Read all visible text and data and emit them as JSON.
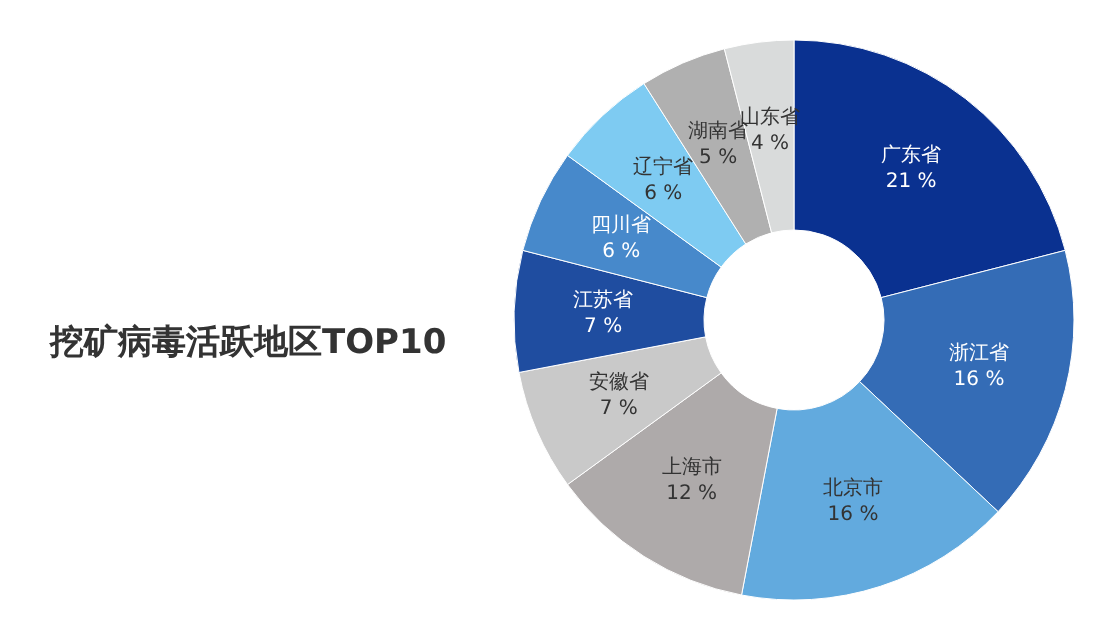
{
  "chart_data": {
    "type": "donut",
    "title": "挖矿病毒活跃地区TOP10",
    "categories": [
      "广东省",
      "浙江省",
      "北京市",
      "上海市",
      "安徽省",
      "江苏省",
      "四川省",
      "辽宁省",
      "湖南省",
      "山东省"
    ],
    "values": [
      21,
      16,
      16,
      12,
      7,
      7,
      6,
      6,
      5,
      4
    ],
    "value_labels": [
      "21 %",
      "16 %",
      "16 %",
      "12 %",
      "7 %",
      "7 %",
      "6 %",
      "6 %",
      "5 %",
      "4 %"
    ],
    "colors": [
      "#0a3190",
      "#346cb6",
      "#62aade",
      "#aeaaaa",
      "#c9c9c9",
      "#1f4da0",
      "#4789cb",
      "#7ecbf2",
      "#b0b0b0",
      "#d9dbdb"
    ]
  }
}
